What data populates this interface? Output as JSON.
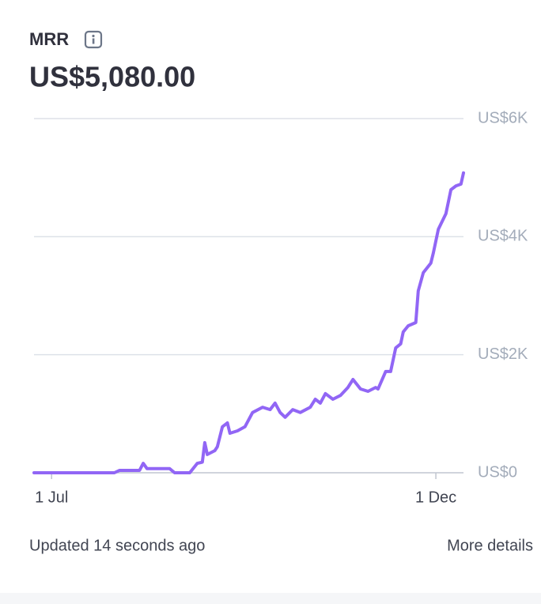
{
  "header": {
    "title": "MRR",
    "value": "US$5,080.00"
  },
  "chart_data": {
    "type": "line",
    "x": [
      175,
      207,
      209,
      217,
      218.5,
      220,
      229,
      231,
      237,
      240,
      242,
      243,
      244,
      247,
      248,
      250,
      252,
      253,
      256,
      259,
      262,
      266,
      269,
      271,
      273,
      275,
      278,
      281,
      285,
      287,
      289,
      291,
      294,
      297,
      300,
      302,
      305,
      308,
      311,
      312,
      315,
      317,
      319,
      321,
      322,
      324,
      327,
      328,
      330,
      333,
      334,
      336,
      339,
      341,
      343,
      345,
      346
    ],
    "values": [
      0,
      0,
      40,
      40,
      160,
      70,
      70,
      0,
      0,
      160,
      180,
      510,
      310,
      375,
      440,
      780,
      845,
      670,
      710,
      780,
      1020,
      1110,
      1070,
      1180,
      1020,
      940,
      1070,
      1020,
      1110,
      1245,
      1180,
      1340,
      1245,
      1310,
      1445,
      1580,
      1420,
      1380,
      1445,
      1420,
      1715,
      1715,
      2115,
      2185,
      2385,
      2490,
      2545,
      3080,
      3390,
      3550,
      3725,
      4125,
      4390,
      4795,
      4860,
      4890,
      5080
    ],
    "color": "#9166f5",
    "xlim": [
      175,
      346
    ],
    "xticks": [
      {
        "value": 182,
        "label": "1 Jul"
      },
      {
        "value": 335,
        "label": "1 Dec"
      }
    ],
    "ylim": [
      0,
      6000
    ],
    "yticks": [
      {
        "value": 0,
        "label": "US$0"
      },
      {
        "value": 2000,
        "label": "US$2K"
      },
      {
        "value": 4000,
        "label": "US$4K"
      },
      {
        "value": 6000,
        "label": "US$6K"
      }
    ],
    "grid": true
  },
  "footer": {
    "updated": "Updated 14 seconds ago",
    "link": "More details"
  }
}
